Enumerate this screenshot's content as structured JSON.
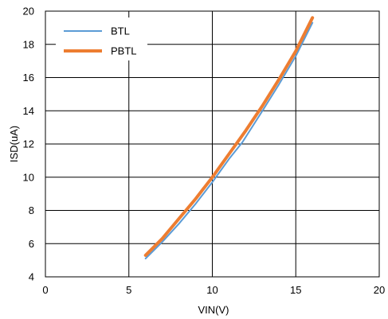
{
  "chart_data": {
    "type": "line",
    "title": "",
    "xlabel": "VIN(V)",
    "ylabel": "ISD(uA)",
    "xlim": [
      0,
      20
    ],
    "ylim": [
      4,
      20
    ],
    "xticks": [
      0,
      5,
      10,
      15,
      20
    ],
    "yticks": [
      4,
      6,
      8,
      10,
      12,
      14,
      16,
      18,
      20
    ],
    "grid": true,
    "legend_position": "top-left",
    "series": [
      {
        "name": "BTL",
        "color": "#5B9BD5",
        "x": [
          6,
          7,
          8,
          9,
          10,
          11,
          11.8,
          13,
          14,
          15,
          16
        ],
        "y": [
          5.1,
          6.1,
          7.2,
          8.4,
          9.7,
          11.1,
          12.1,
          14.0,
          15.6,
          17.3,
          19.3
        ]
      },
      {
        "name": "PBTL",
        "color": "#ED7D31",
        "x": [
          6,
          7,
          8,
          9,
          10,
          11,
          12,
          13,
          14,
          15,
          16
        ],
        "y": [
          5.3,
          6.3,
          7.5,
          8.7,
          10.0,
          11.4,
          12.8,
          14.3,
          15.9,
          17.6,
          19.6
        ]
      }
    ]
  }
}
